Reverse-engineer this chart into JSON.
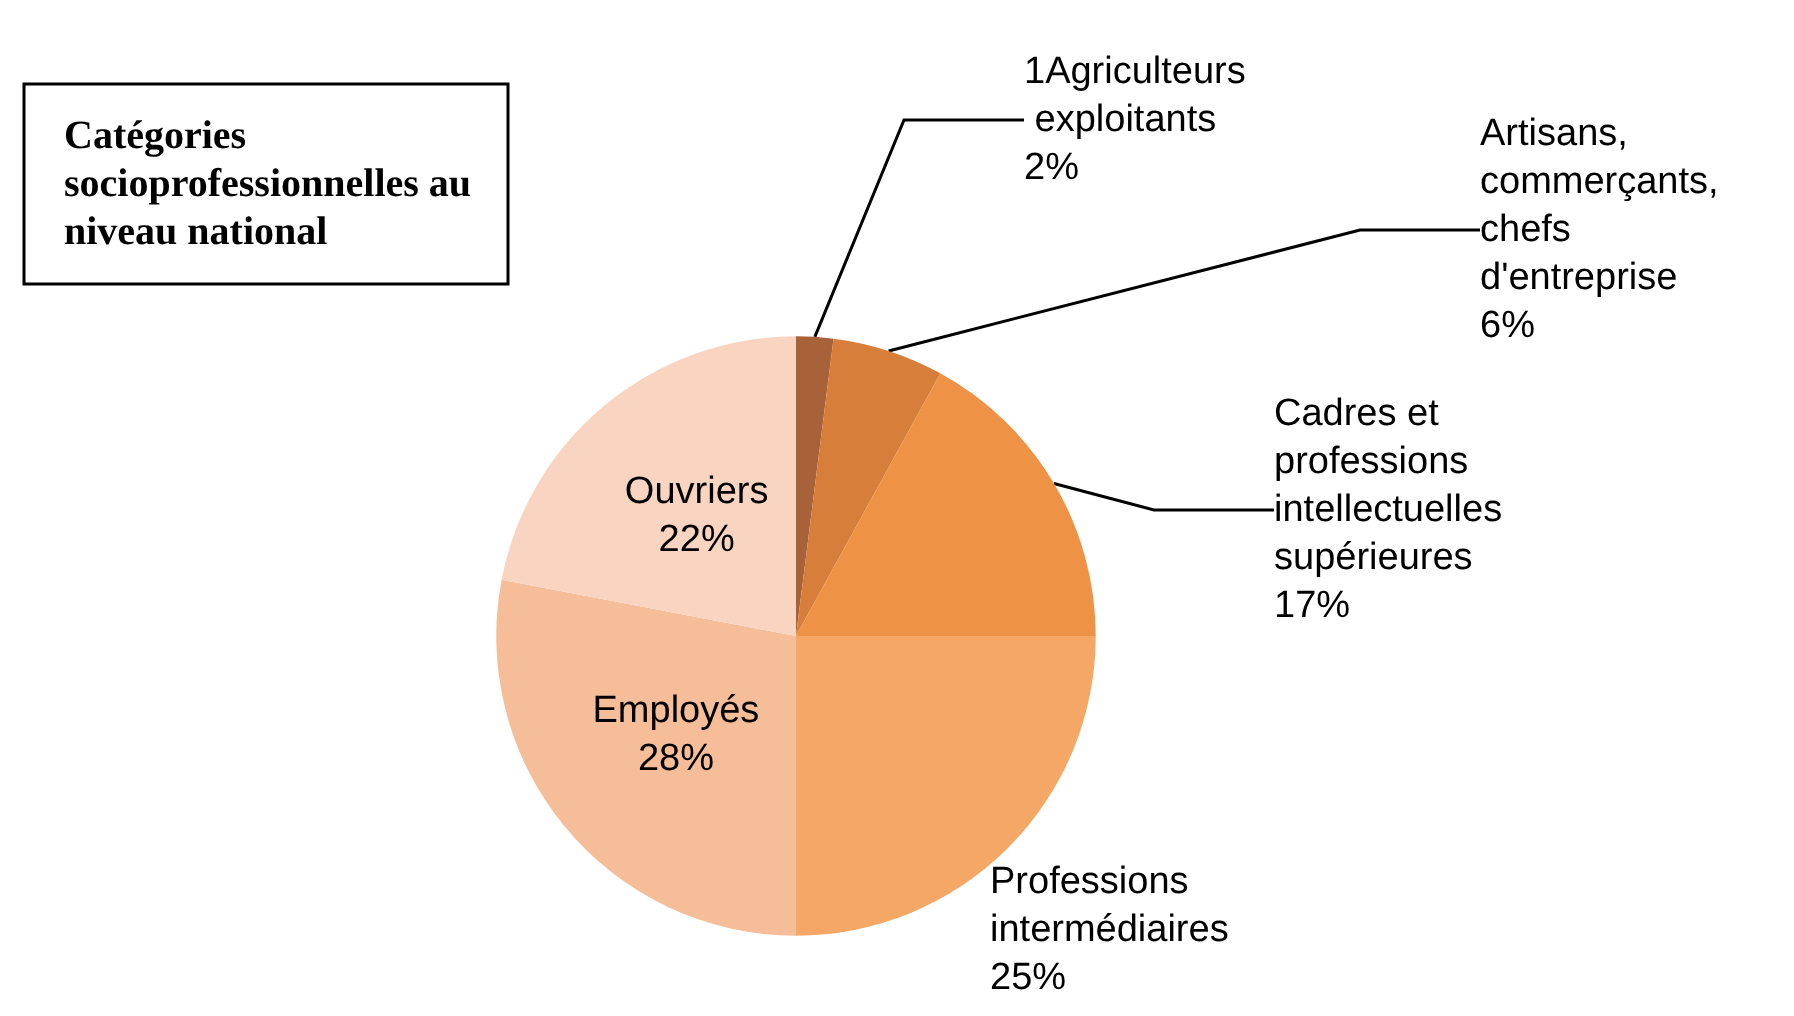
{
  "chart_data": {
    "type": "pie",
    "title": "Catégories socioprofessionnelles au niveau national",
    "categories": [
      "1Agriculteurs exploitants",
      "Artisans, commerçants, chefs d'entreprise",
      "Cadres et professions intellectuelles supérieures",
      "Professions intermédiaires",
      "Employés",
      "Ouvriers"
    ],
    "values": [
      2,
      6,
      17,
      25,
      28,
      22
    ],
    "value_labels": [
      "2%",
      "6%",
      "17%",
      "25%",
      "28%",
      "22%"
    ],
    "colors": [
      "#a8623a",
      "#d67e3a",
      "#ee9245",
      "#f5a765",
      "#f6bd99",
      "#f9d5c1"
    ],
    "legend": false
  }
}
